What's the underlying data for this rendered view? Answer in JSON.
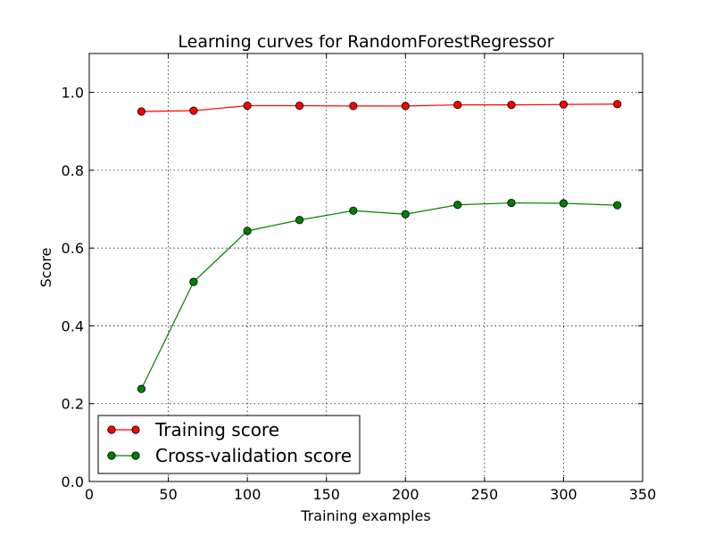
{
  "chart_data": {
    "type": "line",
    "title": "Learning curves for RandomForestRegressor",
    "xlabel": "Training examples",
    "ylabel": "Score",
    "xlim": [
      0,
      350
    ],
    "ylim": [
      0.0,
      1.1
    ],
    "xticks": [
      0,
      50,
      100,
      150,
      200,
      250,
      300,
      350
    ],
    "yticks": [
      0.0,
      0.2,
      0.4,
      0.6,
      0.8,
      1.0
    ],
    "xtick_labels": [
      "0",
      "50",
      "100",
      "150",
      "200",
      "250",
      "300",
      "350"
    ],
    "ytick_labels": [
      "0.0",
      "0.2",
      "0.4",
      "0.6",
      "0.8",
      "1.0"
    ],
    "grid": true,
    "legend_position": "lower-left",
    "x": [
      33,
      66,
      100,
      133,
      167,
      200,
      233,
      267,
      300,
      334
    ],
    "series": [
      {
        "name": "Training score",
        "color": "#ff0000",
        "marker": "circle",
        "values": [
          0.951,
          0.953,
          0.966,
          0.966,
          0.965,
          0.965,
          0.968,
          0.968,
          0.969,
          0.97
        ]
      },
      {
        "name": "Cross-validation score",
        "color": "#008000",
        "marker": "circle",
        "values": [
          0.238,
          0.513,
          0.644,
          0.672,
          0.696,
          0.687,
          0.711,
          0.716,
          0.715,
          0.71
        ]
      }
    ]
  }
}
